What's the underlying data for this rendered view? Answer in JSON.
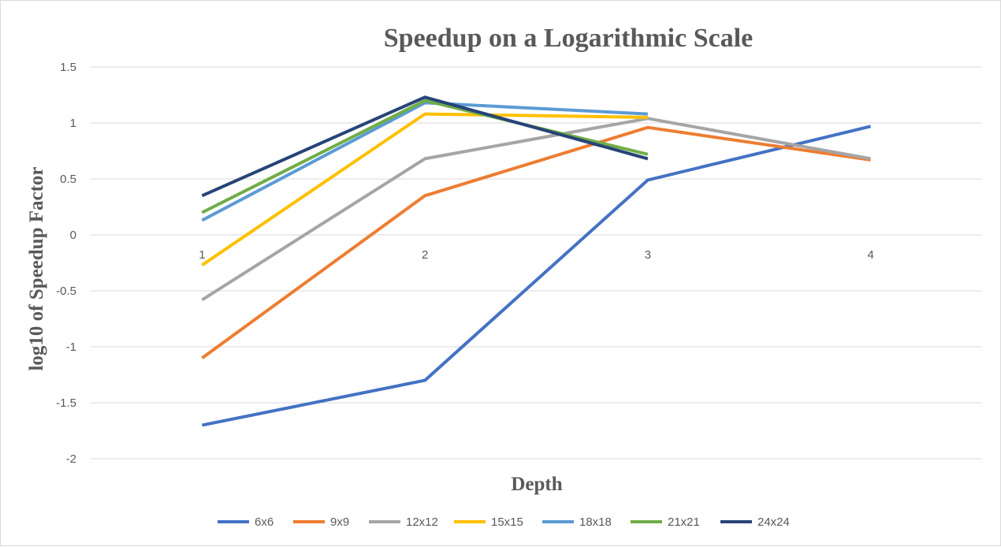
{
  "chart_data": {
    "type": "line",
    "title": "Speedup on a Logarithmic Scale",
    "xlabel": "Depth",
    "ylabel": "log10 of Speedup Factor",
    "categories": [
      "1",
      "2",
      "3",
      "4"
    ],
    "ylim": [
      -2,
      1.5
    ],
    "yticks": [
      "-2",
      "-1.5",
      "-1",
      "-0.5",
      "0",
      "0.5",
      "1",
      "1.5"
    ],
    "grid": true,
    "legend_position": "bottom",
    "series": [
      {
        "name": "6x6",
        "color": "#4472c4",
        "values": [
          -1.7,
          -1.3,
          0.49,
          0.97
        ]
      },
      {
        "name": "9x9",
        "color": "#ed7d31",
        "values": [
          -1.1,
          0.35,
          0.96,
          0.67
        ]
      },
      {
        "name": "12x12",
        "color": "#a5a5a5",
        "values": [
          -0.58,
          0.68,
          1.04,
          0.68
        ]
      },
      {
        "name": "15x15",
        "color": "#ffc000",
        "values": [
          -0.27,
          1.08,
          1.05,
          null
        ]
      },
      {
        "name": "18x18",
        "color": "#5b9bd5",
        "values": [
          0.13,
          1.18,
          1.08,
          null
        ]
      },
      {
        "name": "21x21",
        "color": "#70ad47",
        "values": [
          0.2,
          1.2,
          0.72,
          null
        ]
      },
      {
        "name": "24x24",
        "color": "#264478",
        "values": [
          0.35,
          1.23,
          0.68,
          null
        ]
      }
    ]
  }
}
